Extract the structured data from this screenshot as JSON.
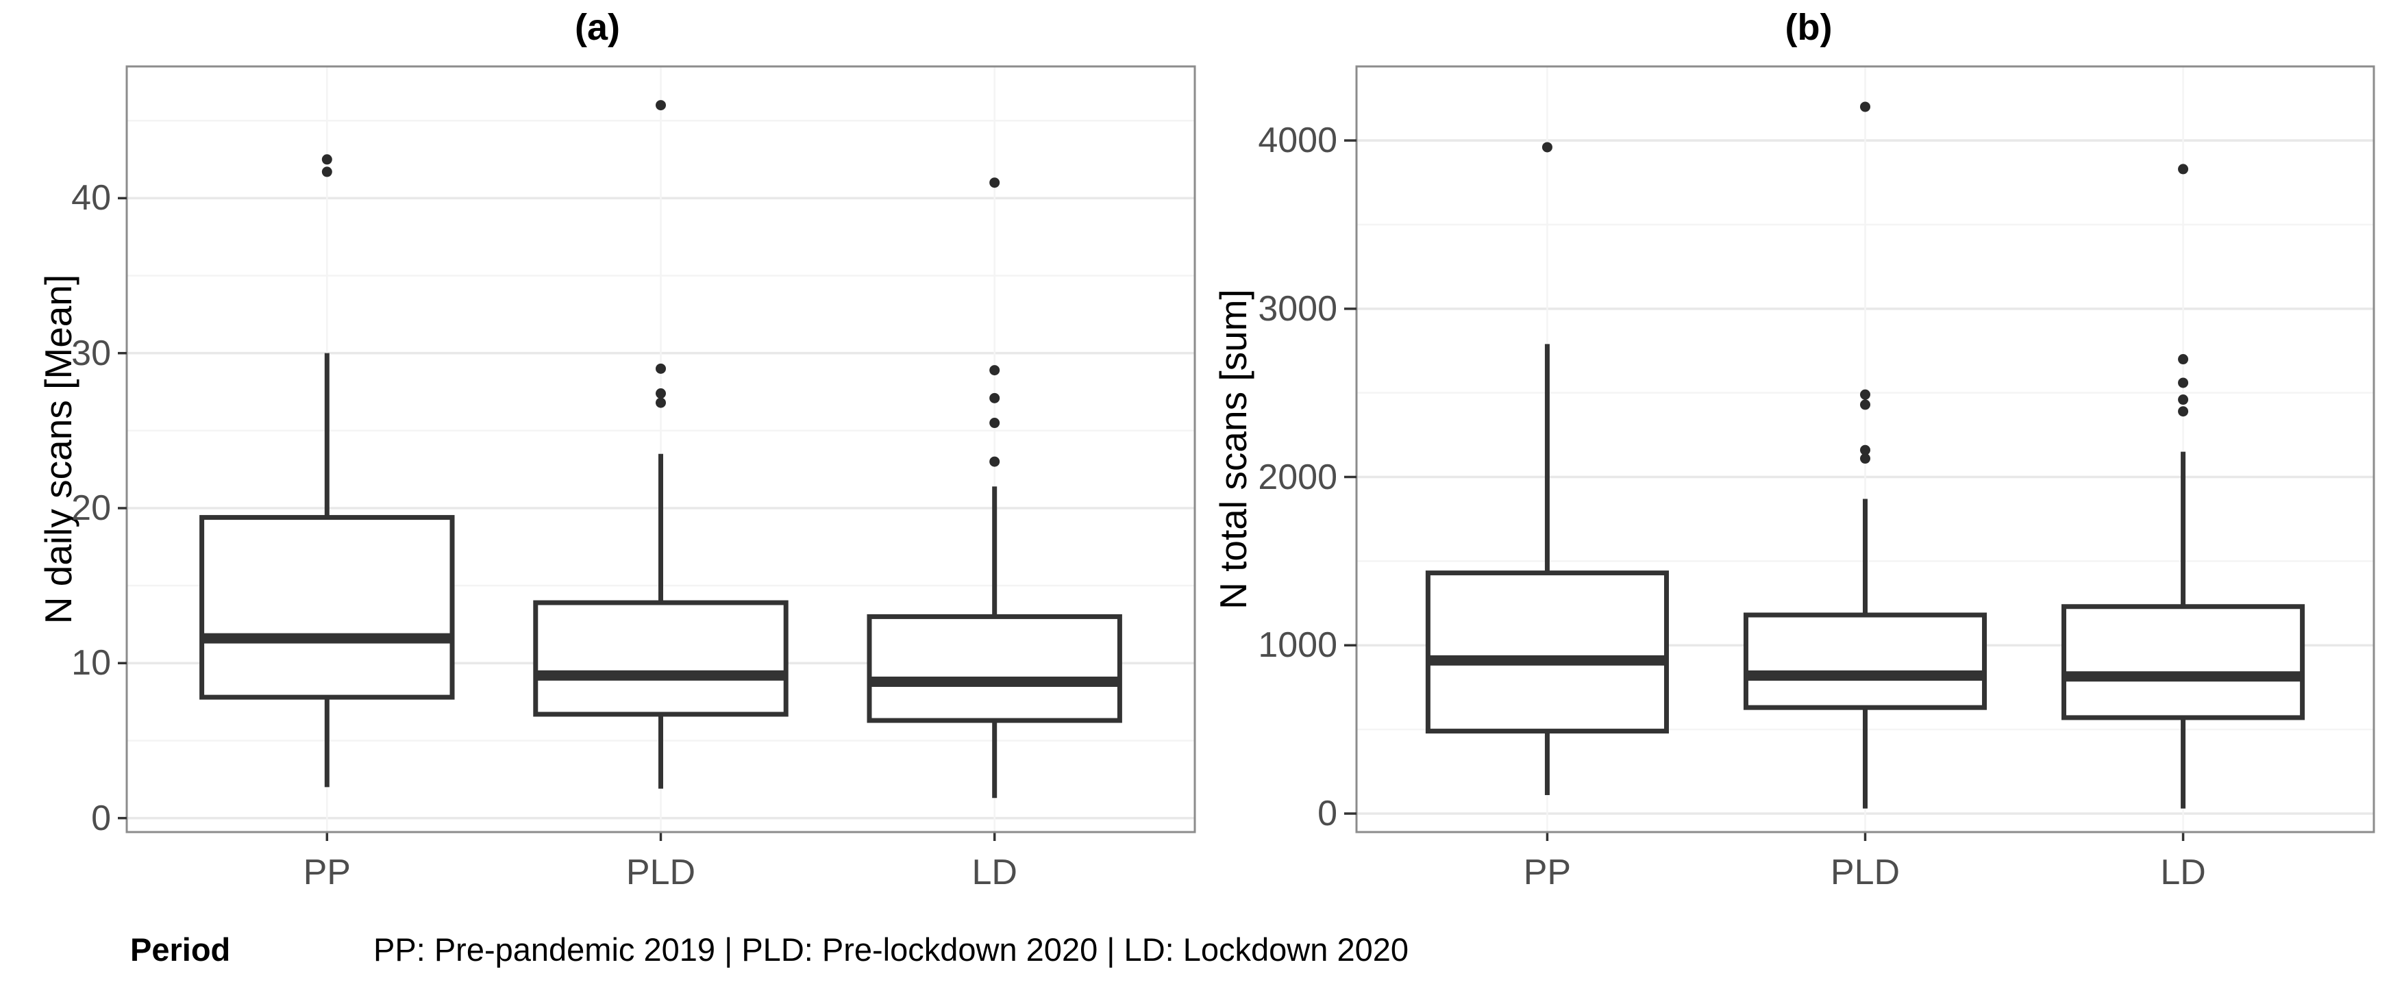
{
  "figure": {
    "caption": {
      "label": "Period",
      "text": "PP: Pre-pandemic 2019 | PLD: Pre-lockdown 2020 | LD: Lockdown 2020"
    }
  },
  "chart_data": [
    {
      "type": "boxplot",
      "panel": "a",
      "title": "(a)",
      "ylabel": "N daily scans [Mean]",
      "xlabel": "",
      "categories": [
        "PP",
        "PLD",
        "LD"
      ],
      "ylim": [
        -0.9,
        48.5
      ],
      "yticks": [
        0,
        10,
        20,
        30,
        40
      ],
      "yticks_minor": [
        5,
        15,
        25,
        35,
        45
      ],
      "grid": true,
      "legend": "none",
      "series": [
        {
          "category": "PP",
          "whisker_low": 2.0,
          "q1": 7.8,
          "median": 11.6,
          "q3": 19.4,
          "whisker_high": 30.0,
          "outliers": [
            41.7,
            42.5
          ]
        },
        {
          "category": "PLD",
          "whisker_low": 1.9,
          "q1": 6.7,
          "median": 9.2,
          "q3": 13.9,
          "whisker_high": 23.5,
          "outliers": [
            26.8,
            27.4,
            29.0,
            46.0
          ]
        },
        {
          "category": "LD",
          "whisker_low": 1.3,
          "q1": 6.3,
          "median": 8.8,
          "q3": 13.0,
          "whisker_high": 21.4,
          "outliers": [
            23.0,
            25.5,
            27.1,
            28.9,
            41.0
          ]
        }
      ]
    },
    {
      "type": "boxplot",
      "panel": "b",
      "title": "(b)",
      "ylabel": "N total scans [sum]",
      "xlabel": "",
      "categories": [
        "PP",
        "PLD",
        "LD"
      ],
      "ylim": [
        -110,
        4440
      ],
      "yticks": [
        0,
        1000,
        2000,
        3000,
        4000
      ],
      "yticks_minor": [
        500,
        1500,
        2500,
        3500
      ],
      "grid": true,
      "legend": "none",
      "series": [
        {
          "category": "PP",
          "whisker_low": 110,
          "q1": 490,
          "median": 910,
          "q3": 1430,
          "whisker_high": 2790,
          "outliers": [
            3960
          ]
        },
        {
          "category": "PLD",
          "whisker_low": 30,
          "q1": 630,
          "median": 820,
          "q3": 1180,
          "whisker_high": 1870,
          "outliers": [
            2110,
            2160,
            2430,
            2490,
            4200
          ]
        },
        {
          "category": "LD",
          "whisker_low": 30,
          "q1": 570,
          "median": 815,
          "q3": 1230,
          "whisker_high": 2150,
          "outliers": [
            2390,
            2460,
            2560,
            2700,
            3830
          ]
        }
      ]
    }
  ],
  "style": {
    "box_stroke": "#333333",
    "outlier_fill": "#2b2b2b",
    "grid_major": "#e8e8e8",
    "grid_minor": "#f4f4f4",
    "panel_border": "#8c8c8c",
    "tick_mark": "#333333",
    "tick_label": "#4d4d4d",
    "background": "#ffffff"
  }
}
